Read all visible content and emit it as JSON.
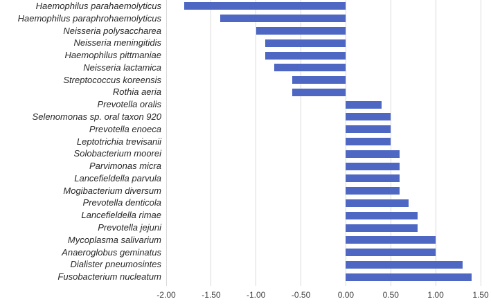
{
  "chart_data": {
    "type": "bar",
    "orientation": "horizontal",
    "title": "",
    "xlabel": "",
    "ylabel": "",
    "legend": "none",
    "grid": "vertical",
    "xlim": [
      -2.0,
      1.5
    ],
    "x_ticks": [
      -2.0,
      -1.5,
      -1.0,
      -0.5,
      0.0,
      0.5,
      1.0,
      1.5
    ],
    "x_tick_labels": [
      "-2.00",
      "-1.50",
      "-1.00",
      "-0.50",
      "0.00",
      "0.50",
      "1.00",
      "1.50"
    ],
    "categories": [
      "Haemophilus parahaemolyticus",
      "Haemophilus paraphrohaemolyticus",
      "Neisseria polysaccharea",
      "Neisseria meningitidis",
      "Haemophilus pittmaniae",
      "Neisseria lactamica",
      "Streptococcus koreensis",
      "Rothia aeria",
      "Prevotella oralis",
      "Selenomonas sp. oral taxon 920",
      "Prevotella enoeca",
      "Leptotrichia trevisanii",
      "Solobacterium moorei",
      "Parvimonas micra",
      "Lancefieldella parvula",
      "Mogibacterium diversum",
      "Prevotella denticola",
      "Lancefieldella rimae",
      "Prevotella jejuni",
      "Mycoplasma salivarium",
      "Anaeroglobus geminatus",
      "Dialister pneumosintes",
      "Fusobacterium nucleatum"
    ],
    "values": [
      -1.8,
      -1.4,
      -1.0,
      -0.9,
      -0.9,
      -0.8,
      -0.6,
      -0.6,
      0.4,
      0.5,
      0.5,
      0.5,
      0.6,
      0.6,
      0.6,
      0.6,
      0.7,
      0.8,
      0.8,
      1.0,
      1.0,
      1.3,
      1.4
    ],
    "colors": {
      "bar": "#4d67c3",
      "gridline": "#d9d9d9",
      "category_text": "#262626",
      "tick_text": "#404040",
      "background": "#ffffff"
    }
  }
}
